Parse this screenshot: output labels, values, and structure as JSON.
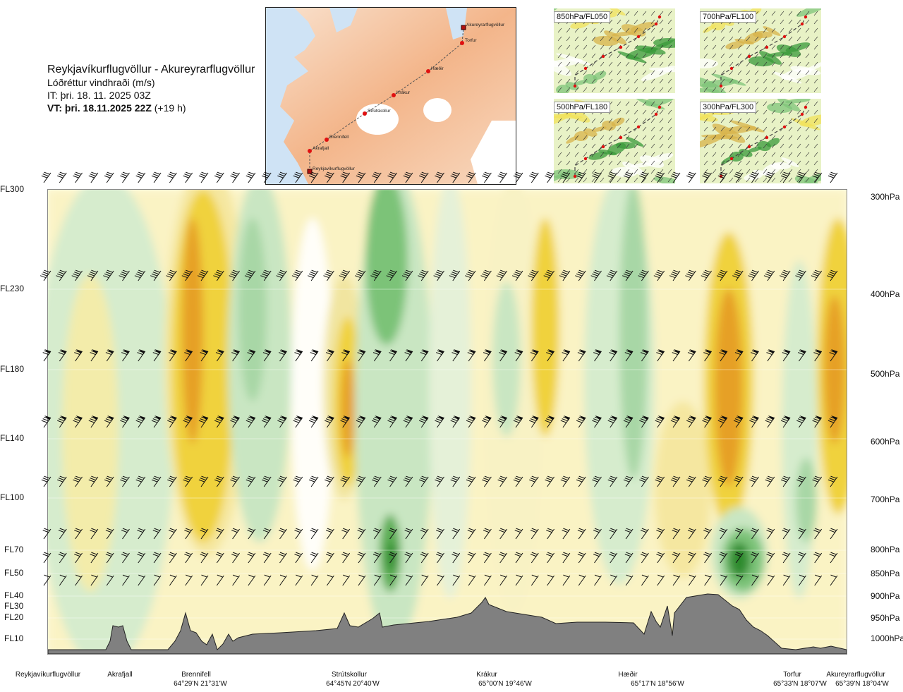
{
  "header": {
    "title": "Reykjavíkurflugvöllur - Akureyrarflugvöllur",
    "subtitle": "Lóðréttur vindhraði (m/s)",
    "initial_time": "IT: þri. 18. 11. 2025 03Z",
    "valid_time_bold": "VT: þri. 18.11.2025 22Z",
    "valid_time_offset": "(+19 h)"
  },
  "route_map": {
    "waypoints": [
      {
        "name": "Akureyrarflugvöllur"
      },
      {
        "name": "Torfur"
      },
      {
        "name": "Hæðir"
      },
      {
        "name": "Krákur"
      },
      {
        "name": "Strútskollur"
      },
      {
        "name": "Brennifell"
      },
      {
        "name": "Akrafjall"
      },
      {
        "name": "Reykjavíkurflugvöllur"
      }
    ]
  },
  "thumbnails": [
    {
      "label": "850hPa/FL050"
    },
    {
      "label": "700hPa/FL100"
    },
    {
      "label": "500hPa/FL180"
    },
    {
      "label": "300hPa/FL300"
    }
  ],
  "chart_data": {
    "type": "heatmap",
    "title": "Lóðréttur vindhraði (m/s)",
    "left_axis_levels": [
      "FL300",
      "FL230",
      "FL180",
      "FL140",
      "FL100",
      "FL70",
      "FL50",
      "FL40",
      "FL30",
      "FL20",
      "FL10"
    ],
    "right_axis_levels": [
      "300hPa",
      "400hPa",
      "500hPa",
      "600hPa",
      "700hPa",
      "800hPa",
      "850hPa",
      "900hPa",
      "950hPa",
      "1000hPa"
    ],
    "pressure_levels_hpa": [
      300,
      400,
      500,
      600,
      700,
      800,
      850,
      900,
      950,
      1000
    ],
    "x_locations": [
      {
        "name": "Reykjavíkurflugvöllur",
        "coord": ""
      },
      {
        "name": "Akrafjall",
        "coord": ""
      },
      {
        "name": "Brennifell",
        "coord": "64°29'N 21°31'W"
      },
      {
        "name": "Strútskollur",
        "coord": "64°45'N 20°40'W"
      },
      {
        "name": "Krákur",
        "coord": "65°00'N 19°46'W"
      },
      {
        "name": "Hæðir",
        "coord": "65°17'N 18°56'W"
      },
      {
        "name": "Torfur",
        "coord": "65°33'N 18°07'W"
      },
      {
        "name": "Akureyrarflugvöllur",
        "coord": "65°39'N 18°04'W"
      }
    ],
    "color_yellow_upward": "#f0e040",
    "color_green_downward": "#6abf69",
    "terrain_color": "#808080"
  }
}
